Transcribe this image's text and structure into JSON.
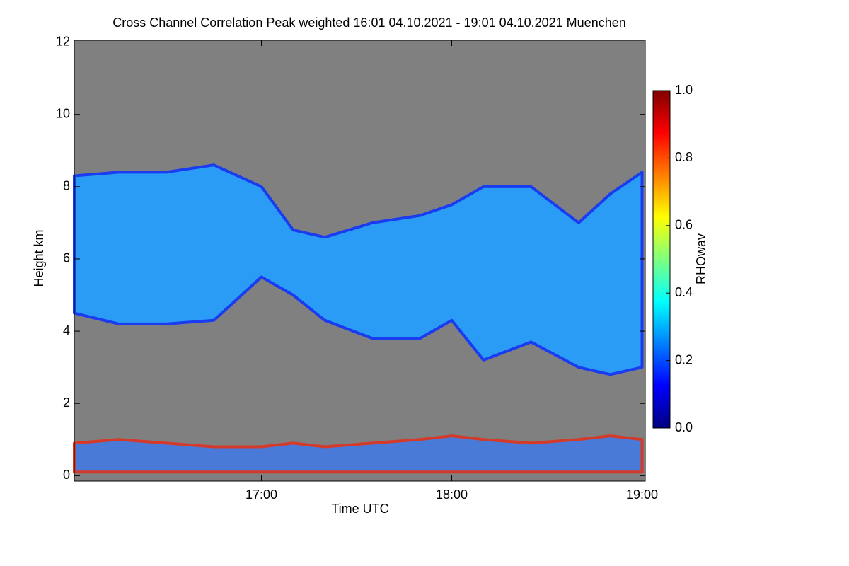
{
  "chart_data": {
    "type": "range_area",
    "title": "Cross Channel Correlation Peak weighted   16:01 04.10.2021 - 19:01 04.10.2021 Muenchen",
    "xlabel": "Time UTC",
    "ylabel": "Height km",
    "background": "#808080",
    "x": [
      16.0167,
      16.25,
      16.5,
      16.75,
      17.0,
      17.1667,
      17.3333,
      17.5833,
      17.8333,
      18.0,
      18.1667,
      18.4167,
      18.6667,
      18.8333,
      19.0
    ],
    "layers": [
      {
        "color": "#2a9cf6",
        "edge_color": "#1a3cf0",
        "top": [
          8.3,
          8.4,
          8.4,
          8.6,
          8.0,
          6.8,
          6.6,
          7.0,
          7.2,
          7.5,
          8.0,
          8.0,
          7.0,
          7.8,
          8.4
        ],
        "base": [
          4.5,
          4.2,
          4.2,
          4.3,
          5.5,
          5.0,
          4.3,
          3.8,
          3.8,
          4.3,
          3.2,
          3.7,
          3.0,
          2.8,
          3.0
        ]
      },
      {
        "color": "#4a7ad8",
        "edge_color": "#d43a2a",
        "top": [
          0.9,
          1.0,
          0.9,
          0.8,
          0.8,
          0.9,
          0.8,
          0.9,
          1.0,
          1.1,
          1.0,
          0.9,
          1.0,
          1.1,
          1.0
        ],
        "base": [
          0.1,
          0.1,
          0.1,
          0.1,
          0.1,
          0.1,
          0.1,
          0.1,
          0.1,
          0.1,
          0.1,
          0.1,
          0.1,
          0.1,
          0.1
        ]
      }
    ],
    "xlim": [
      16.0167,
      19.0167
    ],
    "xticks": [
      {
        "value": 17,
        "label": "17:00"
      },
      {
        "value": 18,
        "label": "18:00"
      },
      {
        "value": 19,
        "label": "19:00"
      }
    ],
    "ylim": [
      -0.15,
      12.05
    ],
    "yticks": [
      0,
      2,
      4,
      6,
      8,
      10,
      12
    ],
    "colorbar": {
      "label": "RHOwav",
      "zlim": [
        0,
        1
      ],
      "zticks": [
        {
          "value": 0,
          "label": "0.0"
        },
        0.2,
        0.4,
        0.6,
        0.8,
        {
          "value": 1,
          "label": "1.0"
        }
      ],
      "colormap": [
        "#00007f",
        "#0000ff",
        "#007fff",
        "#00ffff",
        "#7fff7f",
        "#ffff00",
        "#ff7f00",
        "#ff0000",
        "#7f0000"
      ]
    }
  }
}
